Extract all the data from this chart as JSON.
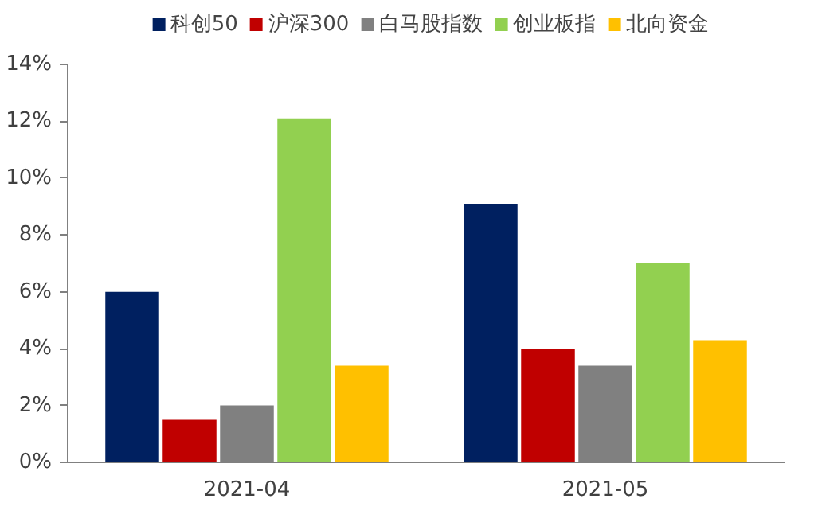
{
  "chart_data": {
    "type": "bar",
    "categories": [
      "2021-04",
      "2021-05"
    ],
    "series": [
      {
        "name": "科创50",
        "color": "#002060",
        "values": [
          6.0,
          9.1
        ]
      },
      {
        "name": "沪深300",
        "color": "#c00000",
        "values": [
          1.5,
          4.0
        ]
      },
      {
        "name": "白马股指数",
        "color": "#808080",
        "values": [
          2.0,
          3.4
        ]
      },
      {
        "name": "创业板指",
        "color": "#92d050",
        "values": [
          12.1,
          7.0
        ]
      },
      {
        "name": "北向资金",
        "color": "#ffc000",
        "values": [
          3.4,
          4.3
        ]
      }
    ],
    "ylim": [
      0,
      14
    ],
    "yticks": [
      {
        "value": 0,
        "label": "0%"
      },
      {
        "value": 2,
        "label": "2%"
      },
      {
        "value": 4,
        "label": "4%"
      },
      {
        "value": 6,
        "label": "6%"
      },
      {
        "value": 8,
        "label": "8%"
      },
      {
        "value": 10,
        "label": "10%"
      },
      {
        "value": 12,
        "label": "12%"
      },
      {
        "value": 14,
        "label": "14%"
      }
    ],
    "grid": false,
    "legend": "top"
  }
}
